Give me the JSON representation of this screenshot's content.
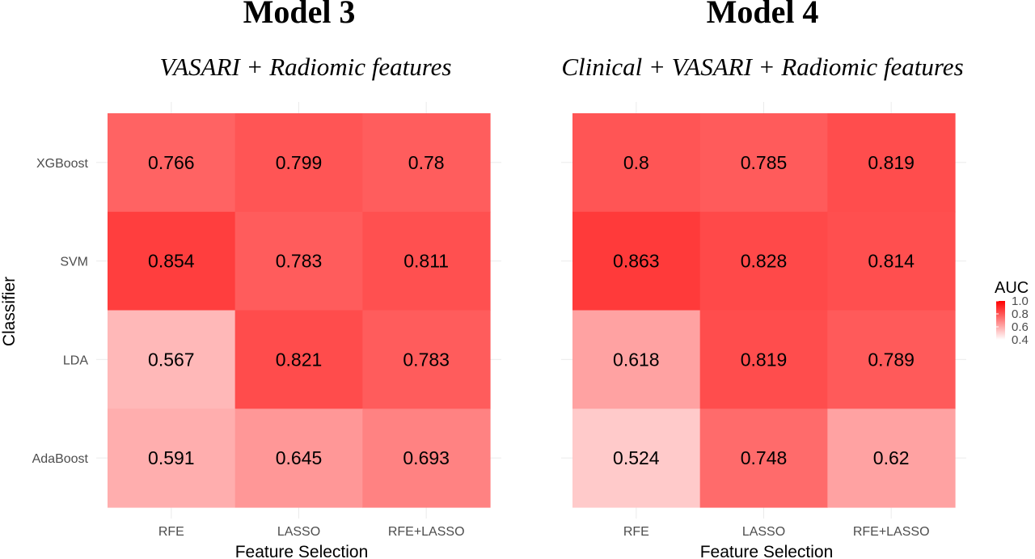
{
  "chart_data": [
    {
      "type": "heatmap",
      "title": "Model 3",
      "subtitle": "VASARI + Radiomic features",
      "xlabel": "Feature Selection",
      "ylabel": "Classifier",
      "x": [
        "RFE",
        "LASSO",
        "RFE+LASSO"
      ],
      "y": [
        "XGBoost",
        "SVM",
        "LDA",
        "AdaBoost"
      ],
      "values": [
        [
          0.766,
          0.799,
          0.78
        ],
        [
          0.854,
          0.783,
          0.811
        ],
        [
          0.567,
          0.821,
          0.783
        ],
        [
          0.591,
          0.645,
          0.693
        ]
      ],
      "labels": [
        [
          "0.766",
          "0.799",
          "0.78"
        ],
        [
          "0.854",
          "0.783",
          "0.811"
        ],
        [
          "0.567",
          "0.821",
          "0.783"
        ],
        [
          "0.591",
          "0.645",
          "0.693"
        ]
      ]
    },
    {
      "type": "heatmap",
      "title": "Model 4",
      "subtitle": "Clinical + VASARI + Radiomic features",
      "xlabel": "Feature Selection",
      "ylabel": "",
      "x": [
        "RFE",
        "LASSO",
        "RFE+LASSO"
      ],
      "y": [
        "XGBoost",
        "SVM",
        "LDA",
        "AdaBoost"
      ],
      "values": [
        [
          0.8,
          0.785,
          0.819
        ],
        [
          0.863,
          0.828,
          0.814
        ],
        [
          0.618,
          0.819,
          0.789
        ],
        [
          0.524,
          0.748,
          0.62
        ]
      ],
      "labels": [
        [
          "0.8",
          "0.785",
          "0.819"
        ],
        [
          "0.863",
          "0.828",
          "0.814"
        ],
        [
          "0.618",
          "0.819",
          "0.789"
        ],
        [
          "0.524",
          "0.748",
          "0.62"
        ]
      ]
    }
  ],
  "legend": {
    "title": "AUC",
    "ticks": [
      "1.0",
      "0.8",
      "0.6",
      "0.4"
    ],
    "tick_values": [
      1.0,
      0.8,
      0.6,
      0.4
    ],
    "range": [
      0.4,
      1.0
    ],
    "color_low": "#ffffff",
    "color_high": "#ff0000"
  },
  "colors": {
    "grid": "#ebebeb",
    "text": "#000000",
    "axis_text": "#4d4d4d"
  }
}
